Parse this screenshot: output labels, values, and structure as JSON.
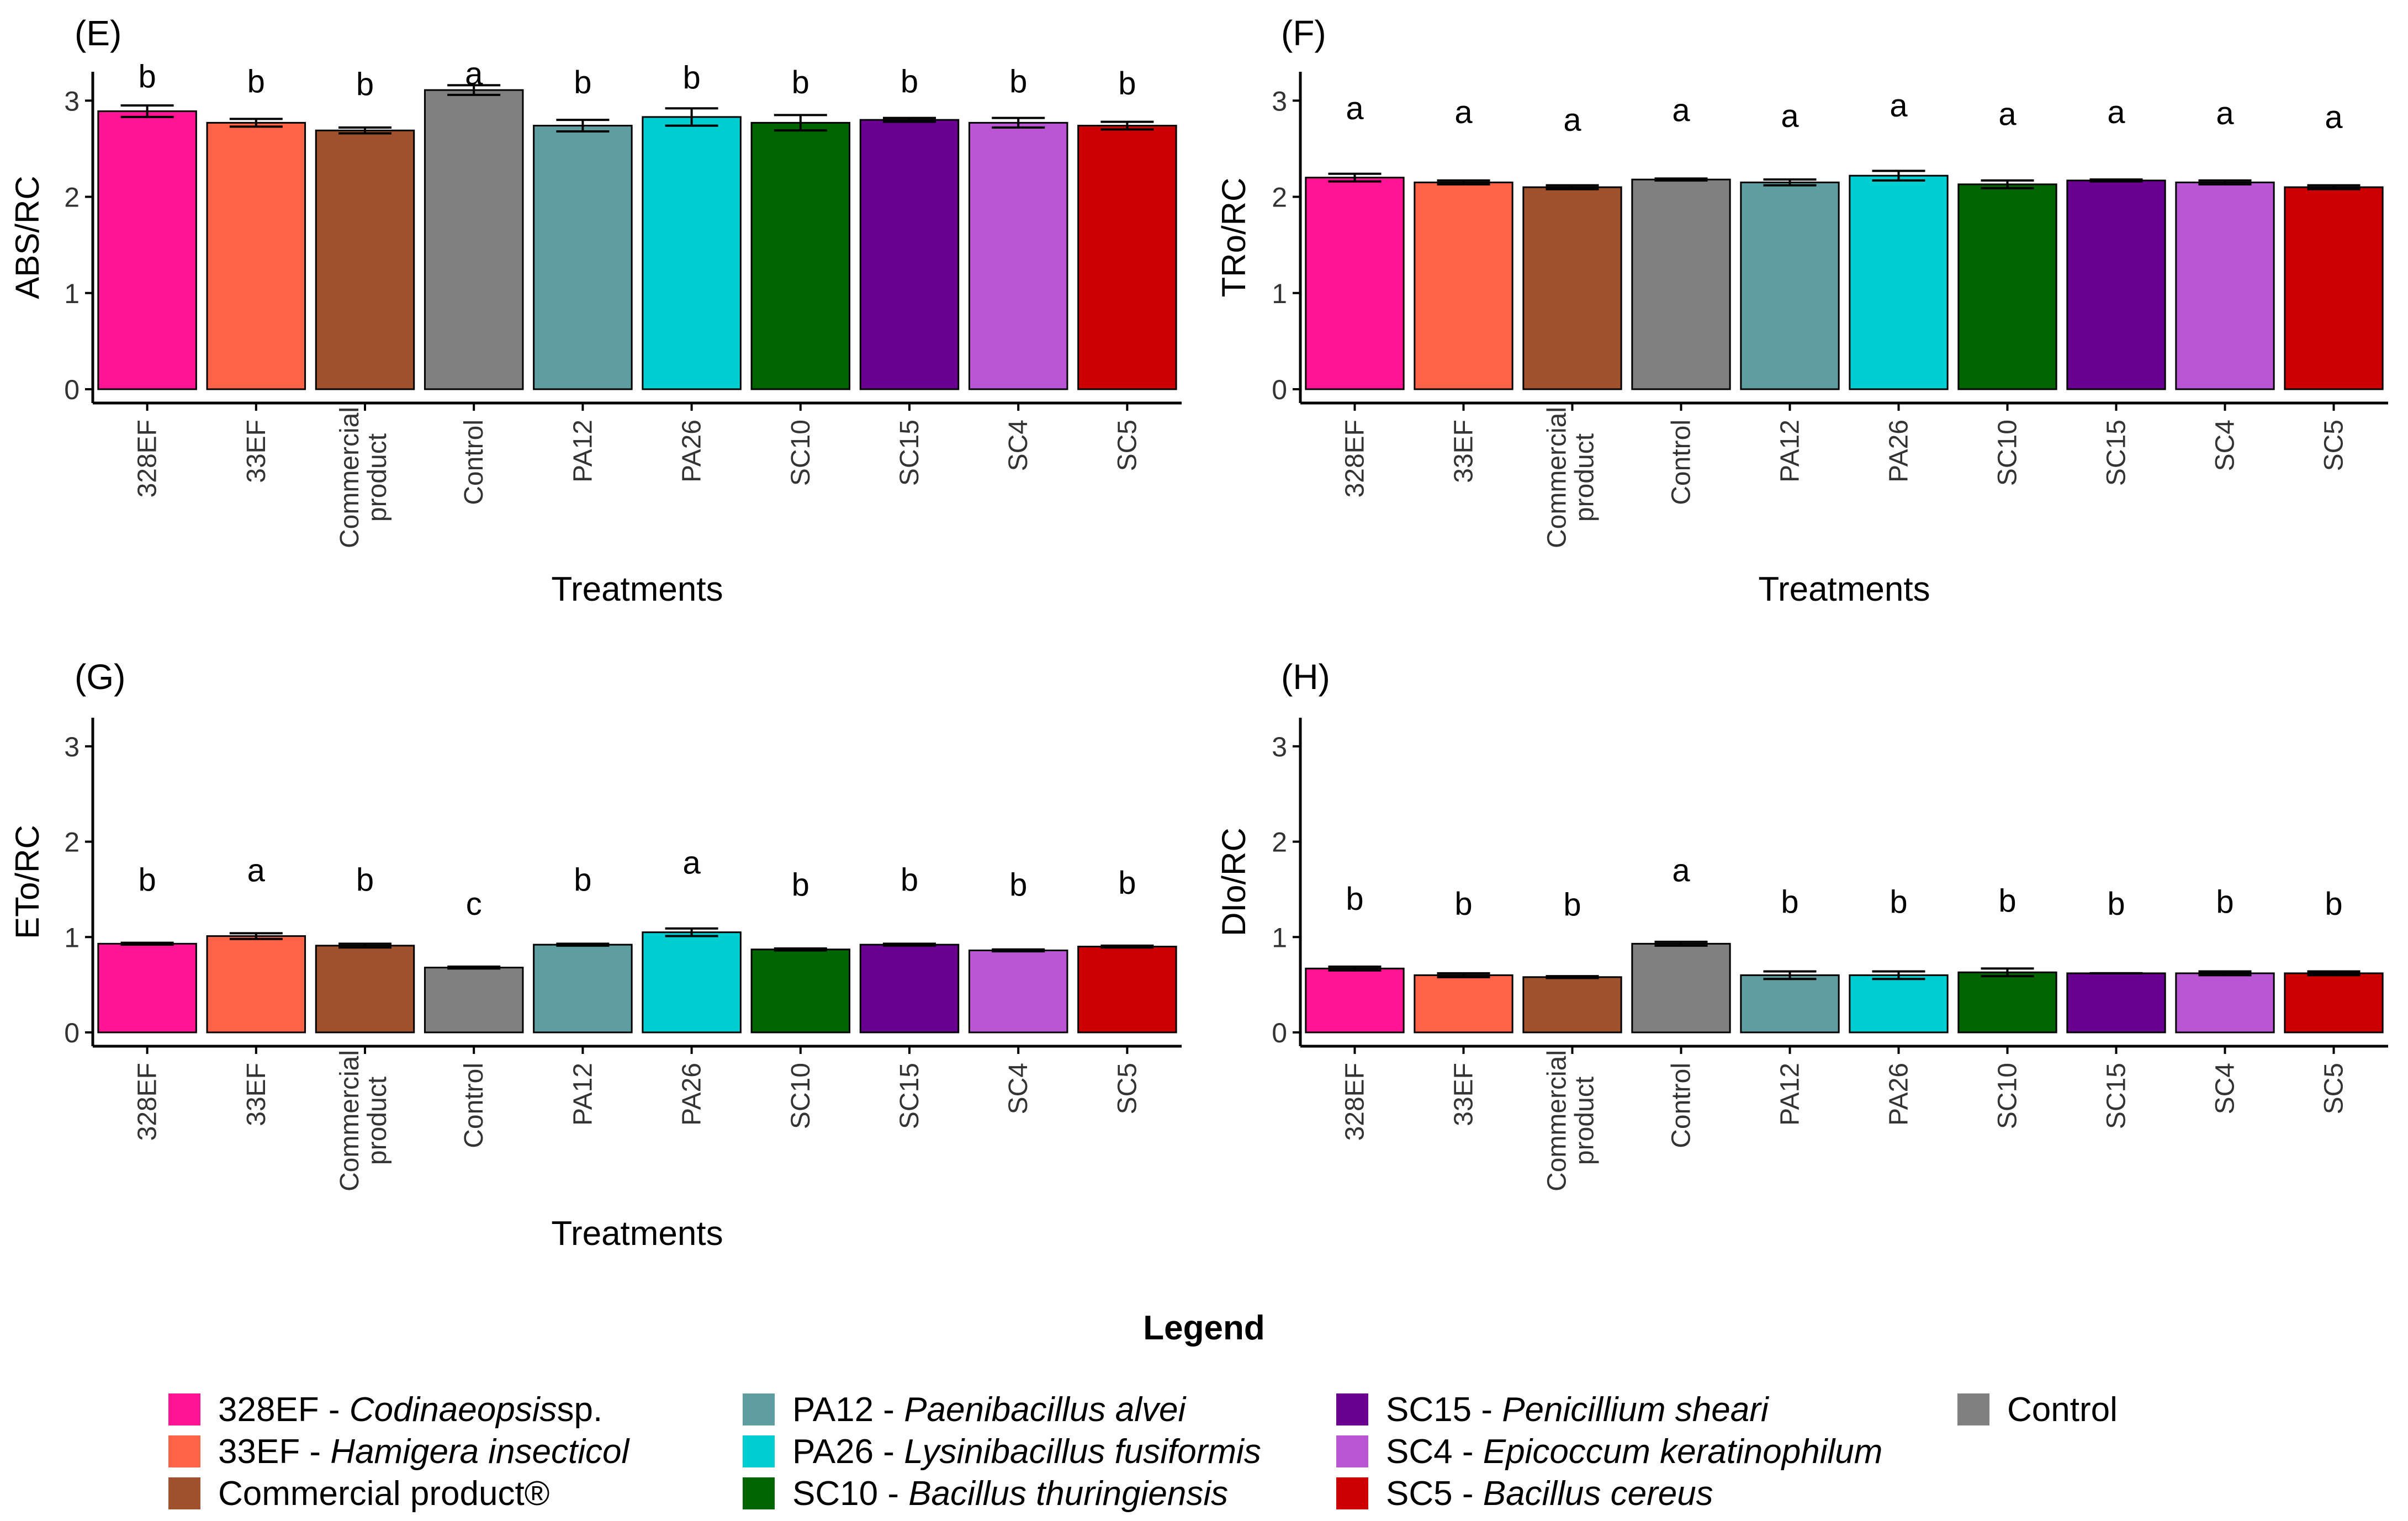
{
  "chart_data": [
    {
      "type": "bar",
      "panel": "(E)",
      "ylabel": "ABS/RC",
      "xlabel": "Treatments",
      "ylim": [
        0,
        3.3
      ],
      "yticks": [
        0,
        1,
        2,
        3
      ],
      "categories": [
        "328EF",
        "33EF",
        "Commercial product",
        "Control",
        "PA12",
        "PA26",
        "SC10",
        "SC15",
        "SC4",
        "SC5"
      ],
      "values": [
        2.89,
        2.77,
        2.69,
        3.11,
        2.74,
        2.83,
        2.77,
        2.8,
        2.77,
        2.74
      ],
      "errors": [
        0.06,
        0.04,
        0.03,
        0.05,
        0.06,
        0.09,
        0.08,
        0.02,
        0.05,
        0.04
      ],
      "letters": [
        "b",
        "b",
        "b",
        "a",
        "b",
        "b",
        "b",
        "b",
        "b",
        "b"
      ],
      "letter_values": [
        3.25,
        3.2,
        3.17,
        3.28,
        3.19,
        3.24,
        3.19,
        3.2,
        3.2,
        3.18
      ]
    },
    {
      "type": "bar",
      "panel": "(F)",
      "ylabel": "TRo/RC",
      "xlabel": "Treatments",
      "ylim": [
        0,
        3.3
      ],
      "yticks": [
        0,
        1,
        2,
        3
      ],
      "categories": [
        "328EF",
        "33EF",
        "Commercial product",
        "Control",
        "PA12",
        "PA26",
        "SC10",
        "SC15",
        "SC4",
        "SC5"
      ],
      "values": [
        2.2,
        2.15,
        2.1,
        2.18,
        2.15,
        2.22,
        2.13,
        2.17,
        2.15,
        2.1
      ],
      "errors": [
        0.04,
        0.02,
        0.02,
        0.01,
        0.03,
        0.05,
        0.04,
        0.01,
        0.02,
        0.02
      ],
      "letters": [
        "a",
        "a",
        "a",
        "a",
        "a",
        "a",
        "a",
        "a",
        "a",
        "a"
      ],
      "letter_values": [
        2.92,
        2.88,
        2.8,
        2.9,
        2.84,
        2.95,
        2.86,
        2.88,
        2.87,
        2.83
      ]
    },
    {
      "type": "bar",
      "panel": "(G)",
      "ylabel": "ETo/RC",
      "xlabel": "Treatments",
      "ylim": [
        0,
        3.3
      ],
      "yticks": [
        0,
        1,
        2,
        3
      ],
      "categories": [
        "328EF",
        "33EF",
        "Commercial product",
        "Control",
        "PA12",
        "PA26",
        "SC10",
        "SC15",
        "SC4",
        "SC5"
      ],
      "values": [
        0.93,
        1.01,
        0.91,
        0.68,
        0.92,
        1.05,
        0.87,
        0.92,
        0.86,
        0.9
      ],
      "errors": [
        0.01,
        0.03,
        0.02,
        0.01,
        0.01,
        0.04,
        0.01,
        0.01,
        0.01,
        0.01
      ],
      "letters": [
        "b",
        "a",
        "b",
        "c",
        "b",
        "a",
        "b",
        "b",
        "b",
        "b"
      ],
      "letter_values": [
        1.6,
        1.7,
        1.6,
        1.35,
        1.6,
        1.78,
        1.55,
        1.6,
        1.55,
        1.57
      ]
    },
    {
      "type": "bar",
      "panel": "(H)",
      "ylabel": "DIo/RC",
      "xlabel": "",
      "ylim": [
        0,
        3.3
      ],
      "yticks": [
        0,
        1,
        2,
        3
      ],
      "categories": [
        "328EF",
        "33EF",
        "Commercial product",
        "Control",
        "PA12",
        "PA26",
        "SC10",
        "SC15",
        "SC4",
        "SC5"
      ],
      "values": [
        0.67,
        0.6,
        0.58,
        0.93,
        0.6,
        0.6,
        0.63,
        0.62,
        0.62,
        0.62
      ],
      "errors": [
        0.02,
        0.02,
        0.01,
        0.02,
        0.04,
        0.04,
        0.04,
        0.0,
        0.02,
        0.02
      ],
      "letters": [
        "b",
        "b",
        "b",
        "a",
        "b",
        "b",
        "b",
        "b",
        "b",
        "b"
      ],
      "letter_values": [
        1.4,
        1.35,
        1.34,
        1.7,
        1.37,
        1.37,
        1.38,
        1.35,
        1.37,
        1.35
      ]
    }
  ],
  "colors": {
    "328EF": "#FF1493",
    "33EF": "#FF6347",
    "Commercial product": "#A0522D",
    "Control": "#808080",
    "PA12": "#5F9EA0",
    "PA26": "#00CED1",
    "SC10": "#006400",
    "SC15": "#6A0090",
    "SC4": "#BA55D3",
    "SC5": "#CC0000"
  },
  "legend": {
    "title": "Legend",
    "columns": [
      [
        {
          "key": "328EF",
          "label": "328EF - ",
          "species": "Codinaeopsis",
          "suffix": " sp.",
          "color": "#FF1493"
        },
        {
          "key": "33EF",
          "label": "33EF - ",
          "species": "Hamigera insecticol",
          "suffix": "",
          "color": "#FF6347"
        },
        {
          "key": "Commercial product",
          "label": "Commercial product®",
          "species": "",
          "suffix": "",
          "color": "#A0522D"
        }
      ],
      [
        {
          "key": "PA12",
          "label": "PA12 - ",
          "species": "Paenibacillus alvei",
          "suffix": "",
          "color": "#5F9EA0"
        },
        {
          "key": "PA26",
          "label": "PA26 - ",
          "species": "Lysinibacillus fusiformis",
          "suffix": "",
          "color": "#00CED1"
        },
        {
          "key": "SC10",
          "label": "SC10 - ",
          "species": "Bacillus thuringiensis",
          "suffix": "",
          "color": "#006400"
        }
      ],
      [
        {
          "key": "SC15",
          "label": "SC15 - ",
          "species": "Penicillium sheari",
          "suffix": "",
          "color": "#6A0090"
        },
        {
          "key": "SC4",
          "label": "SC4 - ",
          "species": "Epicoccum keratinophilum",
          "suffix": "",
          "color": "#BA55D3"
        },
        {
          "key": "SC5",
          "label": "SC5 - ",
          "species": "Bacillus cereus",
          "suffix": "",
          "color": "#CC0000"
        }
      ],
      [
        {
          "key": "Control",
          "label": "Control",
          "species": "",
          "suffix": "",
          "color": "#808080"
        }
      ]
    ]
  }
}
